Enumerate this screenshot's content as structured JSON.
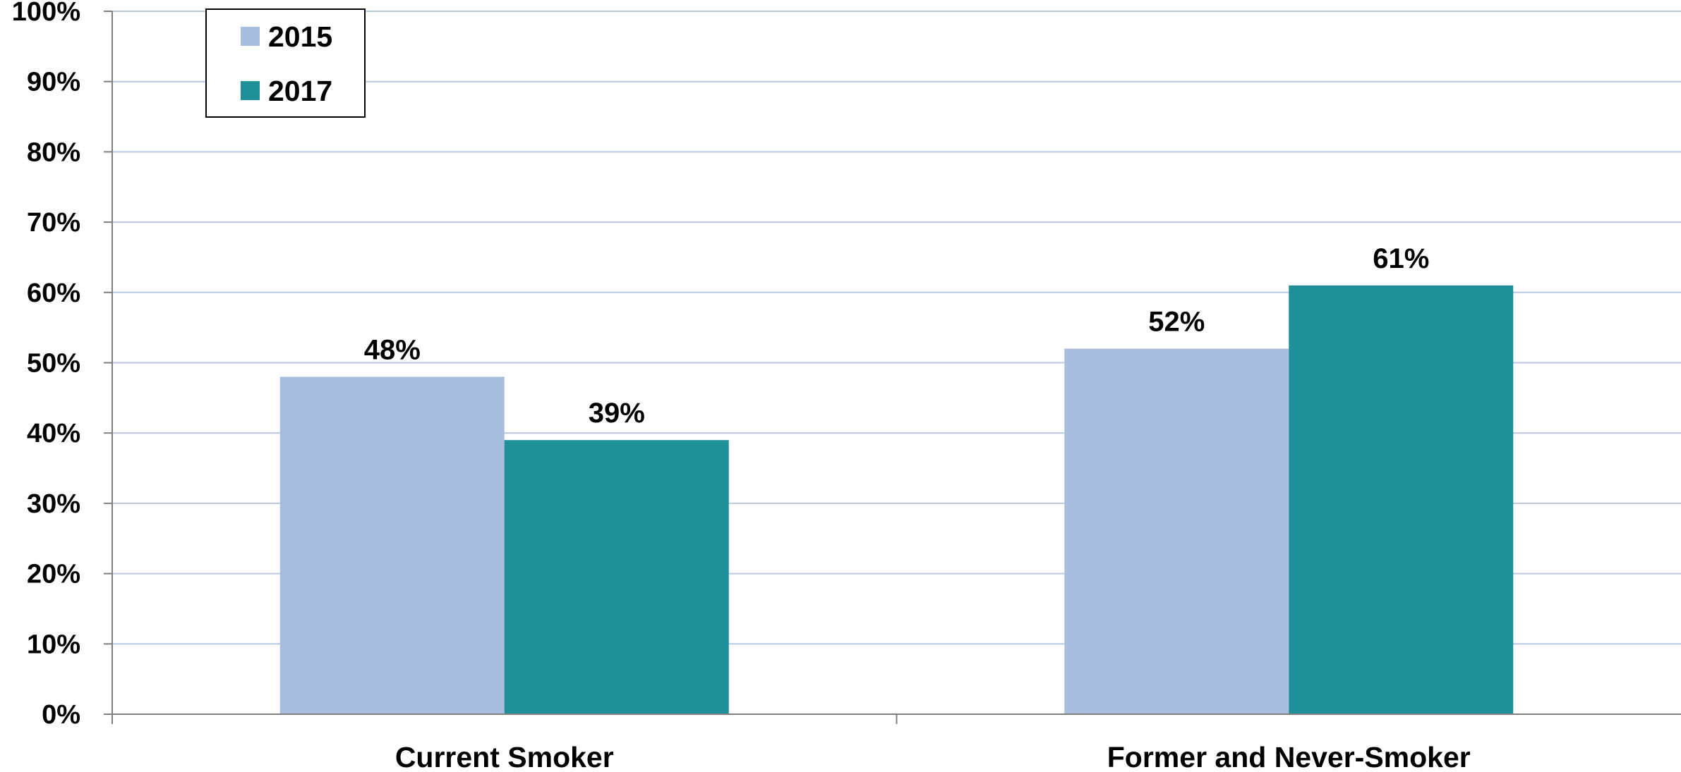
{
  "chart_data": {
    "type": "bar",
    "title": "",
    "xlabel": "",
    "ylabel": "",
    "categories": [
      "Current Smoker",
      "Former and Never-Smoker"
    ],
    "series": [
      {
        "name": "2015",
        "values": [
          48,
          52
        ],
        "labels": [
          "48%",
          "52%"
        ],
        "color": "#a9bedd"
      },
      {
        "name": "2017",
        "values": [
          39,
          61
        ],
        "labels": [
          "39%",
          "61%"
        ],
        "color": "#1f9098"
      }
    ],
    "ylim": [
      0,
      100
    ],
    "yticks": [
      "0%",
      "10%",
      "20%",
      "30%",
      "40%",
      "50%",
      "60%",
      "70%",
      "80%",
      "90%",
      "100%"
    ],
    "grid": true,
    "legend": "top-left",
    "colors": {
      "grid": "#b7c9e0",
      "axis": "#7f7f7f"
    }
  }
}
